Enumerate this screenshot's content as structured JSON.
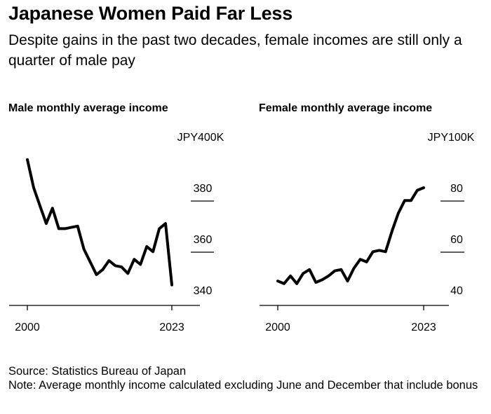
{
  "title": "Japanese Women Paid Far Less",
  "subtitle": "Despite gains in the past two decades, female incomes are still only a quarter of male pay",
  "source": "Source: Statistics Bureau of Japan",
  "note": "Note: Average monthly income calculated excluding June and December that include bonus",
  "colors": {
    "line": "#000000",
    "background": "#ffffff"
  },
  "chart_data": [
    {
      "type": "line",
      "title": "Male monthly average income",
      "unit_label": "JPY400K",
      "xlabel": "",
      "ylabel": "",
      "x_tick_labels": [
        "2000",
        "2023"
      ],
      "y_tick_labels": [
        "380",
        "360",
        "340"
      ],
      "ylim": [
        333,
        400
      ],
      "xlim": [
        2000,
        2023
      ],
      "grid": "short tick lines at 380, 360, 340",
      "x": [
        2000,
        2001,
        2002,
        2003,
        2004,
        2005,
        2006,
        2007,
        2008,
        2009,
        2010,
        2011,
        2012,
        2013,
        2014,
        2015,
        2016,
        2017,
        2018,
        2019,
        2020,
        2021,
        2022,
        2023
      ],
      "values": [
        391,
        380,
        373,
        366,
        372,
        364,
        364,
        364.5,
        365,
        356,
        351,
        346,
        348,
        351.5,
        349.5,
        349,
        346.5,
        352,
        350,
        357,
        355,
        364,
        366,
        342
      ]
    },
    {
      "type": "line",
      "title": "Female monthly average income",
      "unit_label": "JPY100K",
      "xlabel": "",
      "ylabel": "",
      "x_tick_labels": [
        "2000",
        "2023"
      ],
      "y_tick_labels": [
        "80",
        "60",
        "40"
      ],
      "ylim": [
        33,
        100
      ],
      "xlim": [
        2000,
        2023
      ],
      "grid": "short tick lines at 80, 60, 40",
      "x": [
        2000,
        2001,
        2002,
        2003,
        2004,
        2005,
        2006,
        2007,
        2008,
        2009,
        2010,
        2011,
        2012,
        2013,
        2014,
        2015,
        2016,
        2017,
        2018,
        2019,
        2020,
        2021,
        2022,
        2023
      ],
      "values": [
        43.5,
        42.5,
        45.5,
        42.5,
        46.5,
        48,
        43,
        44,
        45.5,
        47.5,
        48,
        43.5,
        48.5,
        52,
        51,
        55,
        55.5,
        55,
        63,
        70,
        75,
        75,
        79,
        80
      ]
    }
  ]
}
